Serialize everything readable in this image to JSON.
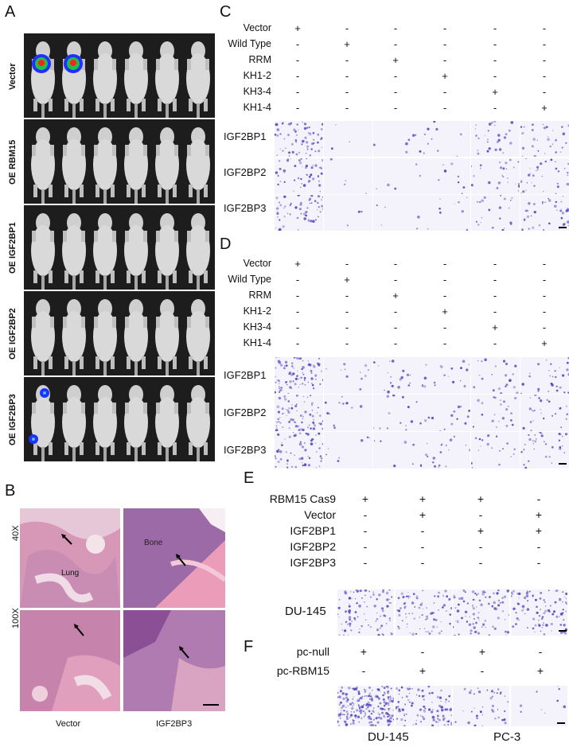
{
  "panels": {
    "A": {
      "letter": "A",
      "groups": [
        "Vector",
        "OE RBM15",
        "OE IGF2BP1",
        "OE IGF2BP2",
        "OE IGF2BP3"
      ]
    },
    "B": {
      "letter": "B",
      "row_labels": [
        "40X",
        "100X"
      ],
      "col_labels": [
        "Vector",
        "IGF2BP3"
      ],
      "tissue_labels": [
        "Lung",
        "Bone"
      ]
    },
    "C": {
      "letter": "C",
      "conditions": [
        "Vector",
        "Wild Type",
        "RRM",
        "KH1-2",
        "KH3-4",
        "KH1-4"
      ],
      "signs": [
        [
          "+",
          "-",
          "-",
          "-",
          "-",
          "-"
        ],
        [
          "-",
          "+",
          "-",
          "-",
          "-",
          "-"
        ],
        [
          "-",
          "-",
          "+",
          "-",
          "-",
          "-"
        ],
        [
          "-",
          "-",
          "-",
          "+",
          "-",
          "-"
        ],
        [
          "-",
          "-",
          "-",
          "-",
          "+",
          "-"
        ],
        [
          "-",
          "-",
          "-",
          "-",
          "-",
          "+"
        ]
      ],
      "rows": [
        "IGF2BP1",
        "IGF2BP2",
        "IGF2BP3"
      ]
    },
    "D": {
      "letter": "D",
      "conditions": [
        "Vector",
        "Wild Type",
        "RRM",
        "KH1-2",
        "KH3-4",
        "KH1-4"
      ],
      "signs": [
        [
          "+",
          "-",
          "-",
          "-",
          "-",
          "-"
        ],
        [
          "-",
          "+",
          "-",
          "-",
          "-",
          "-"
        ],
        [
          "-",
          "-",
          "+",
          "-",
          "-",
          "-"
        ],
        [
          "-",
          "-",
          "-",
          "+",
          "-",
          "-"
        ],
        [
          "-",
          "-",
          "-",
          "-",
          "+",
          "-"
        ],
        [
          "-",
          "-",
          "-",
          "-",
          "-",
          "+"
        ]
      ],
      "rows": [
        "IGF2BP1",
        "IGF2BP2",
        "IGF2BP3"
      ]
    },
    "E": {
      "letter": "E",
      "conditions": [
        "RBM15 Cas9",
        "Vector",
        "IGF2BP1",
        "IGF2BP2",
        "IGF2BP3"
      ],
      "signs": [
        [
          "+",
          "+",
          "+",
          "-"
        ],
        [
          "-",
          "+",
          "-",
          "+"
        ],
        [
          "-",
          "-",
          "+",
          "+"
        ],
        [
          "-",
          "-",
          "-",
          "-"
        ],
        [
          "-",
          "-",
          "-",
          "-"
        ]
      ],
      "row": "DU-145"
    },
    "F": {
      "letter": "F",
      "conditions": [
        "pc-null",
        "pc-RBM15"
      ],
      "signs": [
        [
          "+",
          "-",
          "+",
          "-"
        ],
        [
          "-",
          "+",
          "-",
          "+"
        ]
      ],
      "cell_lines": [
        "DU-145",
        "PC-3"
      ]
    }
  },
  "colors": {
    "stain": "#5a4fc0",
    "he_pink": "#d98aa6",
    "he_purple": "#8a5aa3"
  }
}
